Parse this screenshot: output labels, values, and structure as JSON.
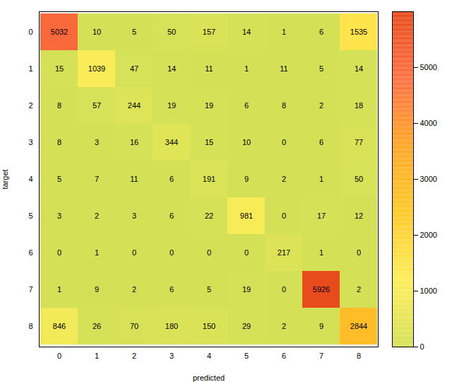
{
  "chart_data": {
    "type": "heatmap",
    "xlabel": "predicted",
    "ylabel": "target",
    "categories": [
      "0",
      "1",
      "2",
      "3",
      "4",
      "5",
      "6",
      "7",
      "8"
    ],
    "row_categories": [
      "0",
      "1",
      "2",
      "3",
      "4",
      "5",
      "6",
      "7",
      "8"
    ],
    "values": [
      [
        5032,
        10,
        5,
        50,
        157,
        14,
        1,
        6,
        1535
      ],
      [
        15,
        1039,
        47,
        14,
        11,
        1,
        11,
        5,
        14
      ],
      [
        8,
        57,
        244,
        19,
        19,
        6,
        8,
        2,
        18
      ],
      [
        8,
        3,
        16,
        344,
        15,
        10,
        0,
        6,
        77
      ],
      [
        5,
        7,
        11,
        6,
        191,
        9,
        2,
        1,
        50
      ],
      [
        3,
        2,
        3,
        6,
        22,
        981,
        0,
        17,
        12
      ],
      [
        0,
        1,
        0,
        0,
        0,
        0,
        217,
        1,
        0
      ],
      [
        1,
        9,
        2,
        6,
        5,
        19,
        0,
        5926,
        2
      ],
      [
        846,
        26,
        70,
        180,
        150,
        29,
        2,
        9,
        2844
      ]
    ],
    "color": [
      "#d4e157",
      "#ffee58",
      "#ffca28",
      "#ffa726",
      "#ff7043",
      "#e64a19"
    ],
    "colorbar_range": [
      0,
      6000
    ],
    "colorbar_ticks": [
      0,
      1000,
      2000,
      3000,
      4000,
      5000
    ],
    "data_labels": true
  }
}
